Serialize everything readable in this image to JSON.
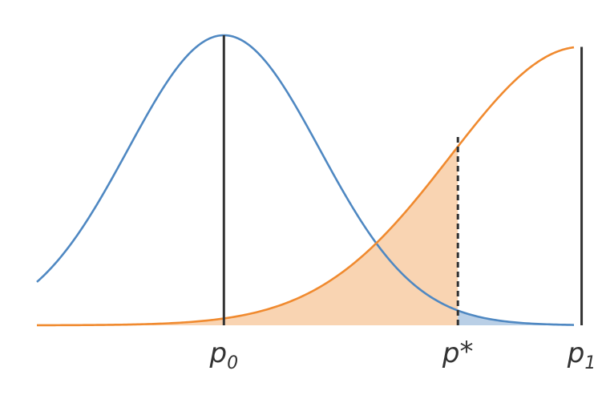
{
  "chart_data": {
    "type": "line",
    "title": "",
    "xlabel": "",
    "ylabel": "",
    "xlim": [
      -1.95,
      3.65
    ],
    "ylim": [
      0,
      1.0
    ],
    "grid": false,
    "legend": "none",
    "series": [
      {
        "mean": 0.0,
        "sd": 1.0,
        "peak": 1.0,
        "color": "#4f88c2",
        "fill": "#b9cfe6",
        "fill_range": [
          2.44,
          3.65
        ]
      },
      {
        "mean": 3.73,
        "sd": 1.37,
        "peak": 0.96,
        "color": "#f08a2f",
        "fill": "#f9d4b2",
        "fill_range": [
          -1.95,
          2.44
        ]
      }
    ],
    "reference_lines": [
      {
        "x": 0.0,
        "style": "solid",
        "y_top": 1.0
      },
      {
        "x": 2.44,
        "style": "dashed",
        "y_top": 0.66
      },
      {
        "x": 3.73,
        "style": "solid",
        "y_top": 0.96
      }
    ],
    "tick_labels": [
      {
        "x": 0.0,
        "base": "p",
        "sub": "0",
        "sup": ""
      },
      {
        "x": 2.44,
        "base": "p",
        "sub": "",
        "sup": "*"
      },
      {
        "x": 3.73,
        "base": "p",
        "sub": "1",
        "sup": ""
      }
    ],
    "colors": {
      "reference_line": "#333333",
      "tick_text": "#333333"
    }
  }
}
